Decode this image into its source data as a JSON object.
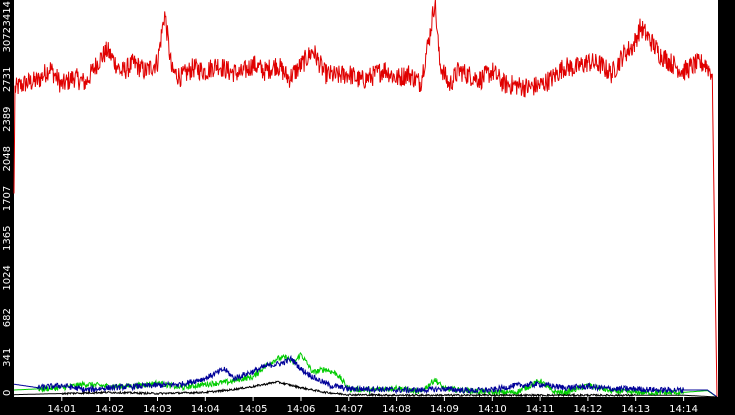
{
  "colors": {
    "background": "#000000",
    "plot_area": "#ffffff",
    "text": "#ffffff"
  },
  "chart_data": {
    "type": "line",
    "y_ticks": [
      "0",
      "341",
      "682",
      "1024",
      "1365",
      "1707",
      "2048",
      "2389",
      "2731",
      "3072",
      "3414"
    ],
    "ylim": [
      0,
      3414
    ],
    "x_ticks": [
      "14:01",
      "14:02",
      "14:03",
      "14:04",
      "14:05",
      "14:06",
      "14:07",
      "14:08",
      "14:09",
      "14:10",
      "14:11",
      "14:12",
      "14:13",
      "14:14"
    ],
    "x_range_min": [
      0,
      14.72
    ],
    "grid": false,
    "series": [
      {
        "color": "#e00000",
        "values": [
          [
            0.0,
            1750
          ],
          [
            0.02,
            2650
          ],
          [
            0.25,
            2700
          ],
          [
            0.5,
            2720
          ],
          [
            0.75,
            2830
          ],
          [
            1.0,
            2680
          ],
          [
            1.25,
            2750
          ],
          [
            1.5,
            2700
          ],
          [
            1.75,
            2880
          ],
          [
            1.95,
            2980
          ],
          [
            2.25,
            2790
          ],
          [
            2.5,
            2870
          ],
          [
            2.75,
            2800
          ],
          [
            3.0,
            2880
          ],
          [
            3.15,
            3300
          ],
          [
            3.3,
            2800
          ],
          [
            3.5,
            2750
          ],
          [
            3.75,
            2830
          ],
          [
            4.0,
            2800
          ],
          [
            4.25,
            2860
          ],
          [
            4.5,
            2800
          ],
          [
            4.75,
            2780
          ],
          [
            5.0,
            2860
          ],
          [
            5.25,
            2800
          ],
          [
            5.5,
            2860
          ],
          [
            5.75,
            2740
          ],
          [
            6.0,
            2850
          ],
          [
            6.25,
            2980
          ],
          [
            6.5,
            2780
          ],
          [
            6.75,
            2760
          ],
          [
            7.0,
            2780
          ],
          [
            7.25,
            2720
          ],
          [
            7.5,
            2760
          ],
          [
            7.75,
            2820
          ],
          [
            8.0,
            2740
          ],
          [
            8.25,
            2780
          ],
          [
            8.5,
            2700
          ],
          [
            8.7,
            3130
          ],
          [
            8.8,
            3410
          ],
          [
            8.9,
            2870
          ],
          [
            9.1,
            2680
          ],
          [
            9.3,
            2810
          ],
          [
            9.5,
            2770
          ],
          [
            9.75,
            2730
          ],
          [
            10.0,
            2800
          ],
          [
            10.25,
            2690
          ],
          [
            10.5,
            2680
          ],
          [
            10.75,
            2660
          ],
          [
            11.0,
            2680
          ],
          [
            11.25,
            2740
          ],
          [
            11.5,
            2840
          ],
          [
            11.75,
            2830
          ],
          [
            12.0,
            2880
          ],
          [
            12.25,
            2860
          ],
          [
            12.5,
            2780
          ],
          [
            12.75,
            2950
          ],
          [
            12.95,
            3020
          ],
          [
            13.1,
            3180
          ],
          [
            13.25,
            3100
          ],
          [
            13.5,
            2950
          ],
          [
            13.75,
            2870
          ],
          [
            14.0,
            2800
          ],
          [
            14.25,
            2860
          ],
          [
            14.45,
            2870
          ],
          [
            14.6,
            2780
          ],
          [
            14.65,
            1300
          ],
          [
            14.7,
            0
          ]
        ]
      },
      {
        "color": "#00cc00",
        "values": [
          [
            0.0,
            60
          ],
          [
            0.5,
            70
          ],
          [
            1.0,
            80
          ],
          [
            1.5,
            110
          ],
          [
            2.0,
            90
          ],
          [
            2.5,
            95
          ],
          [
            3.0,
            120
          ],
          [
            3.5,
            80
          ],
          [
            4.0,
            110
          ],
          [
            4.5,
            130
          ],
          [
            4.8,
            160
          ],
          [
            5.0,
            170
          ],
          [
            5.15,
            230
          ],
          [
            5.3,
            280
          ],
          [
            5.5,
            330
          ],
          [
            5.7,
            340
          ],
          [
            5.85,
            290
          ],
          [
            6.0,
            370
          ],
          [
            6.25,
            210
          ],
          [
            6.5,
            240
          ],
          [
            6.75,
            200
          ],
          [
            7.0,
            70
          ],
          [
            7.5,
            60
          ],
          [
            8.0,
            80
          ],
          [
            8.5,
            40
          ],
          [
            8.8,
            150
          ],
          [
            9.0,
            70
          ],
          [
            9.5,
            55
          ],
          [
            10.0,
            40
          ],
          [
            10.5,
            40
          ],
          [
            11.0,
            140
          ],
          [
            11.25,
            50
          ],
          [
            11.5,
            35
          ],
          [
            12.0,
            100
          ],
          [
            12.5,
            50
          ],
          [
            13.0,
            40
          ],
          [
            13.5,
            35
          ],
          [
            14.0,
            40
          ],
          [
            14.5,
            55
          ],
          [
            14.7,
            0
          ]
        ]
      },
      {
        "color": "#000099",
        "values": [
          [
            0.0,
            110
          ],
          [
            0.5,
            80
          ],
          [
            1.0,
            100
          ],
          [
            1.5,
            60
          ],
          [
            2.0,
            80
          ],
          [
            2.5,
            90
          ],
          [
            3.0,
            100
          ],
          [
            3.5,
            110
          ],
          [
            4.0,
            160
          ],
          [
            4.4,
            240
          ],
          [
            4.6,
            160
          ],
          [
            5.0,
            220
          ],
          [
            5.3,
            270
          ],
          [
            5.6,
            290
          ],
          [
            5.8,
            330
          ],
          [
            6.0,
            240
          ],
          [
            6.3,
            160
          ],
          [
            6.6,
            100
          ],
          [
            7.0,
            70
          ],
          [
            7.5,
            70
          ],
          [
            8.0,
            60
          ],
          [
            8.5,
            60
          ],
          [
            9.0,
            70
          ],
          [
            9.5,
            55
          ],
          [
            10.0,
            60
          ],
          [
            10.5,
            100
          ],
          [
            11.0,
            110
          ],
          [
            11.5,
            80
          ],
          [
            12.0,
            90
          ],
          [
            12.5,
            70
          ],
          [
            13.0,
            70
          ],
          [
            13.5,
            60
          ],
          [
            14.0,
            60
          ],
          [
            14.5,
            60
          ],
          [
            14.7,
            0
          ]
        ]
      },
      {
        "color": "#000000",
        "values": [
          [
            0.0,
            20
          ],
          [
            1.0,
            30
          ],
          [
            2.0,
            40
          ],
          [
            3.0,
            30
          ],
          [
            4.0,
            40
          ],
          [
            4.5,
            60
          ],
          [
            5.0,
            90
          ],
          [
            5.5,
            130
          ],
          [
            6.0,
            80
          ],
          [
            6.5,
            40
          ],
          [
            7.0,
            20
          ],
          [
            8.0,
            15
          ],
          [
            9.0,
            15
          ],
          [
            10.0,
            15
          ],
          [
            11.0,
            15
          ],
          [
            12.0,
            15
          ],
          [
            13.0,
            15
          ],
          [
            14.0,
            15
          ],
          [
            14.7,
            0
          ]
        ]
      }
    ]
  }
}
